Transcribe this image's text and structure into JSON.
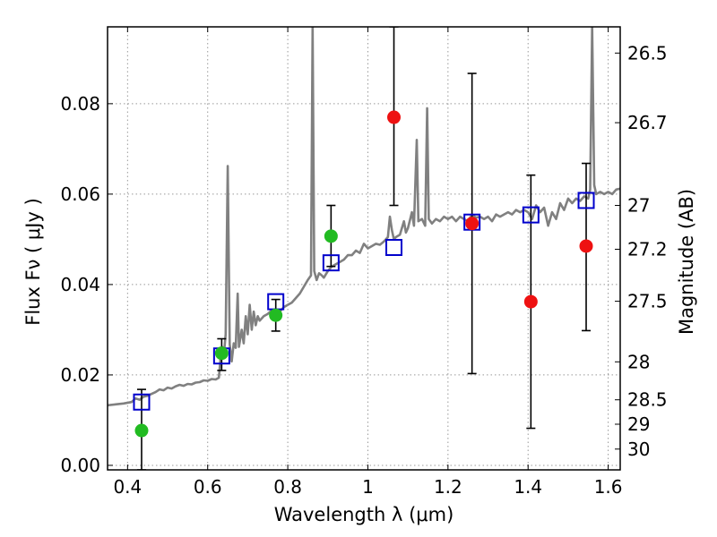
{
  "chart_data": {
    "type": "scatter",
    "xlabel": "Wavelength  λ (μm)",
    "ylabel": "Flux  Fν  ( μJy )",
    "y2label": "Magnitude (AB)",
    "xlim": [
      0.35,
      1.63
    ],
    "ylim": [
      -0.001,
      0.097
    ],
    "grid": true,
    "x_ticks": [
      0.4,
      0.6,
      0.8,
      1.0,
      1.2,
      1.4,
      1.6
    ],
    "x_tick_labels": [
      "0.4",
      "0.6",
      "0.8",
      "1",
      "1.2",
      "1.4",
      "1.6"
    ],
    "y_ticks": [
      0.0,
      0.02,
      0.04,
      0.06,
      0.08
    ],
    "y_tick_labels": [
      "0.00",
      "0.02",
      "0.04",
      "0.06",
      "0.08"
    ],
    "y2_ticks": [
      {
        "label": "26.5",
        "flux": 0.0912
      },
      {
        "label": "26.7",
        "flux": 0.0758
      },
      {
        "label": "27",
        "flux": 0.0575
      },
      {
        "label": "27.2",
        "flux": 0.0478
      },
      {
        "label": "27.5",
        "flux": 0.0363
      },
      {
        "label": "28",
        "flux": 0.0229
      },
      {
        "label": "28.5",
        "flux": 0.0145
      },
      {
        "label": "29",
        "flux": 0.0091
      },
      {
        "label": "30",
        "flux": 0.0036
      }
    ],
    "colors": {
      "model": "#808080",
      "model_photometry": "#0000cc",
      "observed_optical": "#22bb22",
      "observed_nir": "#ee1111",
      "errorbar": "#000000",
      "grid": "#999999"
    },
    "series": [
      {
        "kind": "line",
        "points": [
          [
            0.35,
            0.0133
          ],
          [
            0.37,
            0.0135
          ],
          [
            0.39,
            0.0137
          ],
          [
            0.41,
            0.014
          ],
          [
            0.42,
            0.0148
          ],
          [
            0.43,
            0.0145
          ],
          [
            0.44,
            0.0152
          ],
          [
            0.45,
            0.0154
          ],
          [
            0.46,
            0.0158
          ],
          [
            0.47,
            0.0162
          ],
          [
            0.48,
            0.0168
          ],
          [
            0.49,
            0.0166
          ],
          [
            0.5,
            0.0172
          ],
          [
            0.51,
            0.017
          ],
          [
            0.52,
            0.0175
          ],
          [
            0.53,
            0.0178
          ],
          [
            0.54,
            0.0176
          ],
          [
            0.55,
            0.018
          ],
          [
            0.56,
            0.0179
          ],
          [
            0.57,
            0.0183
          ],
          [
            0.58,
            0.0184
          ],
          [
            0.59,
            0.0188
          ],
          [
            0.6,
            0.0187
          ],
          [
            0.61,
            0.0191
          ],
          [
            0.62,
            0.019
          ],
          [
            0.628,
            0.0194
          ],
          [
            0.632,
            0.0235
          ],
          [
            0.636,
            0.0262
          ],
          [
            0.64,
            0.024
          ],
          [
            0.645,
            0.029
          ],
          [
            0.65,
            0.0662
          ],
          [
            0.655,
            0.0268
          ],
          [
            0.66,
            0.023
          ],
          [
            0.665,
            0.027
          ],
          [
            0.67,
            0.026
          ],
          [
            0.675,
            0.038
          ],
          [
            0.678,
            0.0262
          ],
          [
            0.685,
            0.03
          ],
          [
            0.69,
            0.027
          ],
          [
            0.695,
            0.033
          ],
          [
            0.7,
            0.029
          ],
          [
            0.705,
            0.0355
          ],
          [
            0.71,
            0.03
          ],
          [
            0.715,
            0.034
          ],
          [
            0.72,
            0.031
          ],
          [
            0.725,
            0.033
          ],
          [
            0.73,
            0.032
          ],
          [
            0.74,
            0.033
          ],
          [
            0.75,
            0.0335
          ],
          [
            0.76,
            0.0343
          ],
          [
            0.77,
            0.0345
          ],
          [
            0.78,
            0.034
          ],
          [
            0.79,
            0.035
          ],
          [
            0.8,
            0.0355
          ],
          [
            0.81,
            0.036
          ],
          [
            0.82,
            0.037
          ],
          [
            0.83,
            0.038
          ],
          [
            0.84,
            0.0395
          ],
          [
            0.85,
            0.041
          ],
          [
            0.858,
            0.042
          ],
          [
            0.862,
            0.097
          ],
          [
            0.866,
            0.043
          ],
          [
            0.872,
            0.041
          ],
          [
            0.878,
            0.0425
          ],
          [
            0.885,
            0.042
          ],
          [
            0.89,
            0.0415
          ],
          [
            0.9,
            0.043
          ],
          [
            0.91,
            0.044
          ],
          [
            0.92,
            0.0445
          ],
          [
            0.93,
            0.045
          ],
          [
            0.94,
            0.0455
          ],
          [
            0.95,
            0.0465
          ],
          [
            0.96,
            0.0465
          ],
          [
            0.97,
            0.0475
          ],
          [
            0.98,
            0.047
          ],
          [
            0.99,
            0.049
          ],
          [
            1.0,
            0.048
          ],
          [
            1.01,
            0.0485
          ],
          [
            1.02,
            0.049
          ],
          [
            1.03,
            0.0488
          ],
          [
            1.04,
            0.0495
          ],
          [
            1.05,
            0.0505
          ],
          [
            1.055,
            0.055
          ],
          [
            1.06,
            0.052
          ],
          [
            1.065,
            0.05
          ],
          [
            1.07,
            0.0505
          ],
          [
            1.08,
            0.051
          ],
          [
            1.09,
            0.054
          ],
          [
            1.095,
            0.0515
          ],
          [
            1.1,
            0.0525
          ],
          [
            1.11,
            0.056
          ],
          [
            1.115,
            0.053
          ],
          [
            1.122,
            0.072
          ],
          [
            1.126,
            0.054
          ],
          [
            1.135,
            0.0545
          ],
          [
            1.143,
            0.053
          ],
          [
            1.148,
            0.079
          ],
          [
            1.152,
            0.0545
          ],
          [
            1.16,
            0.0535
          ],
          [
            1.17,
            0.0545
          ],
          [
            1.18,
            0.054
          ],
          [
            1.19,
            0.055
          ],
          [
            1.2,
            0.0545
          ],
          [
            1.21,
            0.055
          ],
          [
            1.22,
            0.054
          ],
          [
            1.23,
            0.055
          ],
          [
            1.24,
            0.0545
          ],
          [
            1.25,
            0.054
          ],
          [
            1.26,
            0.0555
          ],
          [
            1.27,
            0.0548
          ],
          [
            1.28,
            0.055
          ],
          [
            1.29,
            0.0545
          ],
          [
            1.3,
            0.055
          ],
          [
            1.31,
            0.054
          ],
          [
            1.32,
            0.0555
          ],
          [
            1.33,
            0.055
          ],
          [
            1.34,
            0.0555
          ],
          [
            1.35,
            0.056
          ],
          [
            1.36,
            0.0555
          ],
          [
            1.37,
            0.0565
          ],
          [
            1.38,
            0.056
          ],
          [
            1.39,
            0.0565
          ],
          [
            1.4,
            0.056
          ],
          [
            1.41,
            0.0545
          ],
          [
            1.42,
            0.0575
          ],
          [
            1.43,
            0.056
          ],
          [
            1.44,
            0.057
          ],
          [
            1.45,
            0.053
          ],
          [
            1.46,
            0.056
          ],
          [
            1.47,
            0.0545
          ],
          [
            1.48,
            0.058
          ],
          [
            1.49,
            0.0565
          ],
          [
            1.5,
            0.059
          ],
          [
            1.51,
            0.058
          ],
          [
            1.52,
            0.059
          ],
          [
            1.53,
            0.0585
          ],
          [
            1.54,
            0.0595
          ],
          [
            1.55,
            0.059
          ],
          [
            1.555,
            0.061
          ],
          [
            1.56,
            0.097
          ],
          [
            1.565,
            0.062
          ],
          [
            1.57,
            0.06
          ],
          [
            1.58,
            0.0605
          ],
          [
            1.59,
            0.06
          ],
          [
            1.6,
            0.0605
          ],
          [
            1.61,
            0.06
          ],
          [
            1.62,
            0.061
          ],
          [
            1.63,
            0.0612
          ]
        ]
      },
      {
        "kind": "square",
        "points": [
          [
            0.435,
            0.014
          ],
          [
            0.635,
            0.0242
          ],
          [
            0.77,
            0.0362
          ],
          [
            0.908,
            0.0448
          ],
          [
            1.065,
            0.0482
          ],
          [
            1.26,
            0.0538
          ],
          [
            1.407,
            0.0554
          ],
          [
            1.545,
            0.0586
          ]
        ]
      },
      {
        "kind": "circle-green",
        "points": [
          {
            "x": 0.435,
            "y": 0.0077,
            "lo": -0.001,
            "hi": 0.0168
          },
          {
            "x": 0.635,
            "y": 0.0248,
            "lo": 0.021,
            "hi": 0.028
          },
          {
            "x": 0.77,
            "y": 0.0332,
            "lo": 0.0297,
            "hi": 0.0367
          },
          {
            "x": 0.908,
            "y": 0.0507,
            "lo": 0.044,
            "hi": 0.0575
          }
        ]
      },
      {
        "kind": "circle-red",
        "points": [
          {
            "x": 1.065,
            "y": 0.077,
            "lo": 0.0575,
            "hi": 0.097
          },
          {
            "x": 1.26,
            "y": 0.0535,
            "lo": 0.0203,
            "hi": 0.0867
          },
          {
            "x": 1.407,
            "y": 0.0362,
            "lo": 0.0082,
            "hi": 0.0642
          },
          {
            "x": 1.545,
            "y": 0.0485,
            "lo": 0.0298,
            "hi": 0.0668
          }
        ]
      }
    ]
  }
}
